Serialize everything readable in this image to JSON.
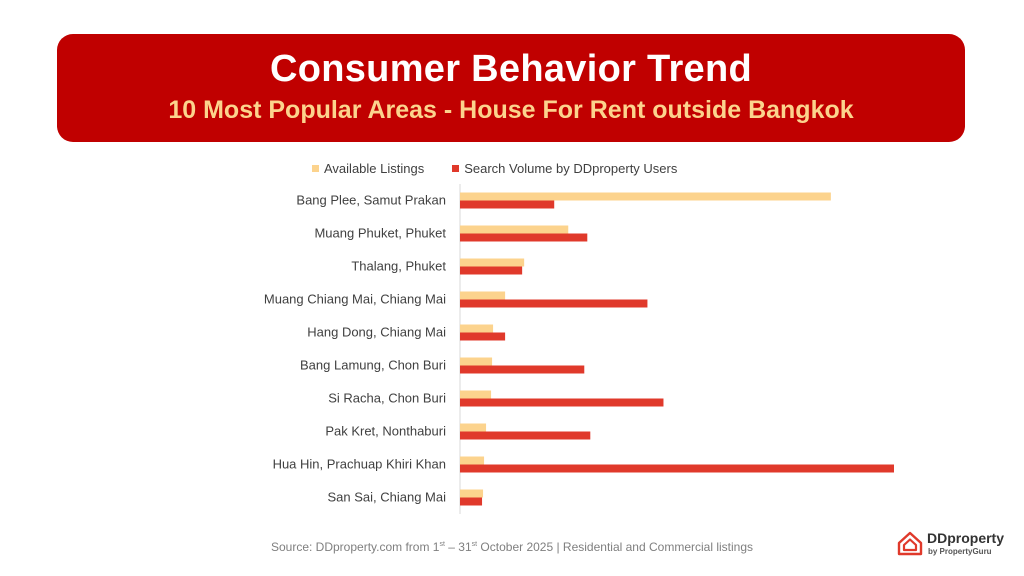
{
  "header": {
    "title": "Consumer Behavior Trend",
    "subtitle": "10 Most Popular Areas - House For Rent outside Bangkok"
  },
  "colors": {
    "banner": "#c00000",
    "subtitle": "#fcd38d",
    "available": "#fcd38d",
    "search": "#e0392b"
  },
  "chart_data": {
    "type": "bar",
    "orientation": "horizontal",
    "categories": [
      "Bang Plee, Samut Prakan",
      "Muang Phuket, Phuket",
      "Thalang, Phuket",
      "Muang Chiang Mai, Chiang Mai",
      "Hang Dong, Chiang Mai",
      "Bang Lamung, Chon Buri",
      "Si Racha, Chon Buri",
      "Pak Kret, Nonthaburi",
      "Hua Hin, Prachuap Khiri Khan",
      "San Sai, Chiang Mai"
    ],
    "series": [
      {
        "name": "Available Listings",
        "values": [
          370,
          108,
          64,
          45,
          33,
          32,
          31,
          26,
          24,
          23
        ]
      },
      {
        "name": "Search Volume by DDproperty Users",
        "values": [
          94,
          127,
          62,
          187,
          45,
          124,
          203,
          130,
          433,
          22
        ]
      }
    ],
    "xlim": [
      0,
      450
    ],
    "xaxis_visible": false,
    "grid": false,
    "legend_position": "top"
  },
  "footer": {
    "source_prefix": "Source: DDproperty.com from 1",
    "source_sup1": "st",
    "source_mid": " – 31",
    "source_sup2": "st",
    "source_suffix": " October 2025 | Residential and Commercial listings"
  },
  "logo": {
    "name": "DDproperty",
    "tagline": "by PropertyGuru",
    "icon": "ddproperty-logo-icon"
  }
}
